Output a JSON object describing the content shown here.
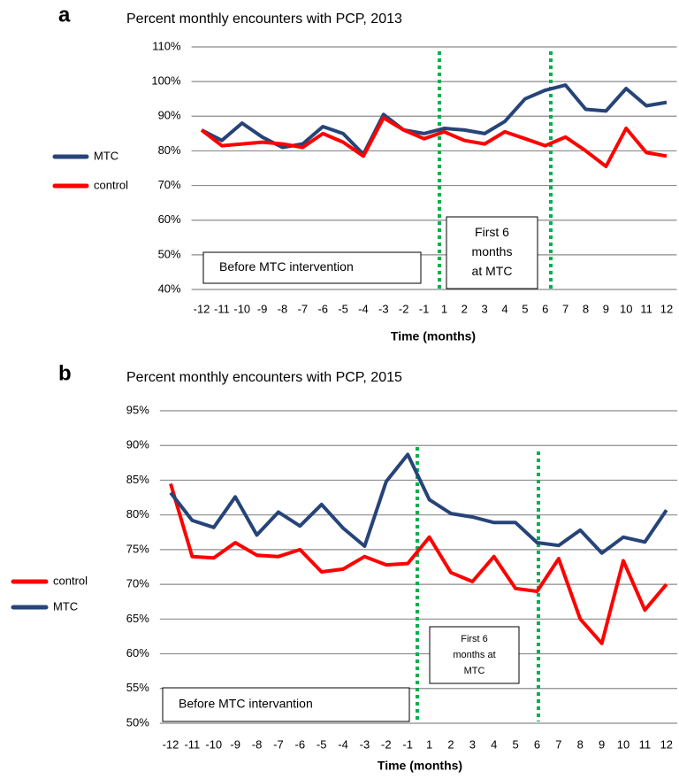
{
  "chart_data": [
    {
      "type": "line",
      "panel_label": "a",
      "title": "Percent monthly encounters with PCP, 2013",
      "x_label": "Time (months)",
      "categories": [
        "-12",
        "-11",
        "-10",
        "-9",
        "-8",
        "-7",
        "-6",
        "-5",
        "-4",
        "-3",
        "-2",
        "-1",
        "1",
        "2",
        "3",
        "4",
        "5",
        "6",
        "7",
        "8",
        "9",
        "10",
        "11",
        "12"
      ],
      "series": [
        {
          "name": "MTC",
          "color": "#264478",
          "values": [
            86,
            83,
            88,
            84,
            81,
            82,
            87,
            85,
            79,
            90.5,
            86,
            85,
            86.5,
            86,
            85,
            88.5,
            95,
            97.5,
            99,
            92,
            91.5,
            98,
            93,
            94
          ]
        },
        {
          "name": "control",
          "color": "#ff0000",
          "values": [
            86,
            81.5,
            82,
            82.5,
            82,
            81,
            85,
            82.5,
            78.5,
            89.5,
            86,
            83.5,
            85.5,
            83,
            82,
            85.5,
            83.5,
            81.5,
            84,
            80,
            75.5,
            86.5,
            79.5,
            78.5
          ]
        }
      ],
      "ylim": [
        40,
        110
      ],
      "yticks": [
        {
          "value": 40,
          "label": "40%"
        },
        {
          "value": 50,
          "label": "50%"
        },
        {
          "value": 60,
          "label": "60%"
        },
        {
          "value": 70,
          "label": "70%"
        },
        {
          "value": 80,
          "label": "80%"
        },
        {
          "value": 90,
          "label": "90%"
        },
        {
          "value": 100,
          "label": "100%"
        },
        {
          "value": 110,
          "label": "110%"
        }
      ],
      "grid": true,
      "legend": "left",
      "annotations": [
        {
          "lines": [
            "Before MTC intervention"
          ]
        },
        {
          "lines": [
            "First 6",
            "months",
            "at MTC"
          ]
        }
      ]
    },
    {
      "type": "line",
      "panel_label": "b",
      "title": "Percent monthly encounters with PCP, 2015",
      "x_label": "Time (months)",
      "categories": [
        "-12",
        "-11",
        "-10",
        "-9",
        "-8",
        "-7",
        "-6",
        "-5",
        "-4",
        "-3",
        "-2",
        "-1",
        "1",
        "2",
        "3",
        "4",
        "5",
        "6",
        "7",
        "8",
        "9",
        "10",
        "11",
        "12"
      ],
      "series": [
        {
          "name": "control",
          "color": "#ff0000",
          "values": [
            84.5,
            74,
            73.8,
            76,
            74.2,
            74,
            75,
            71.8,
            72.2,
            74,
            72.8,
            73,
            76.8,
            71.7,
            70.4,
            74,
            69.4,
            69,
            73.7,
            65,
            61.5,
            73.4,
            66.3,
            70
          ]
        },
        {
          "name": "MTC",
          "color": "#264478",
          "values": [
            83.2,
            79.2,
            78.2,
            82.6,
            77.1,
            80.4,
            78.4,
            81.5,
            78.1,
            75.5,
            84.8,
            88.7,
            82.2,
            80.2,
            79.7,
            78.9,
            78.9,
            76,
            75.6,
            77.8,
            74.5,
            76.8,
            76.1,
            80.7
          ]
        }
      ],
      "ylim": [
        50,
        95
      ],
      "yticks": [
        {
          "value": 50,
          "label": "50%"
        },
        {
          "value": 55,
          "label": "55%"
        },
        {
          "value": 60,
          "label": "60%"
        },
        {
          "value": 65,
          "label": "65%"
        },
        {
          "value": 70,
          "label": "70%"
        },
        {
          "value": 75,
          "label": "75%"
        },
        {
          "value": 80,
          "label": "80%"
        },
        {
          "value": 85,
          "label": "85%"
        },
        {
          "value": 90,
          "label": "90%"
        },
        {
          "value": 95,
          "label": "95%"
        }
      ],
      "grid": true,
      "legend": "left",
      "annotations": [
        {
          "lines": [
            "Before MTC intervantion"
          ]
        },
        {
          "lines": [
            "First 6",
            "months at",
            "MTC"
          ]
        }
      ]
    }
  ]
}
